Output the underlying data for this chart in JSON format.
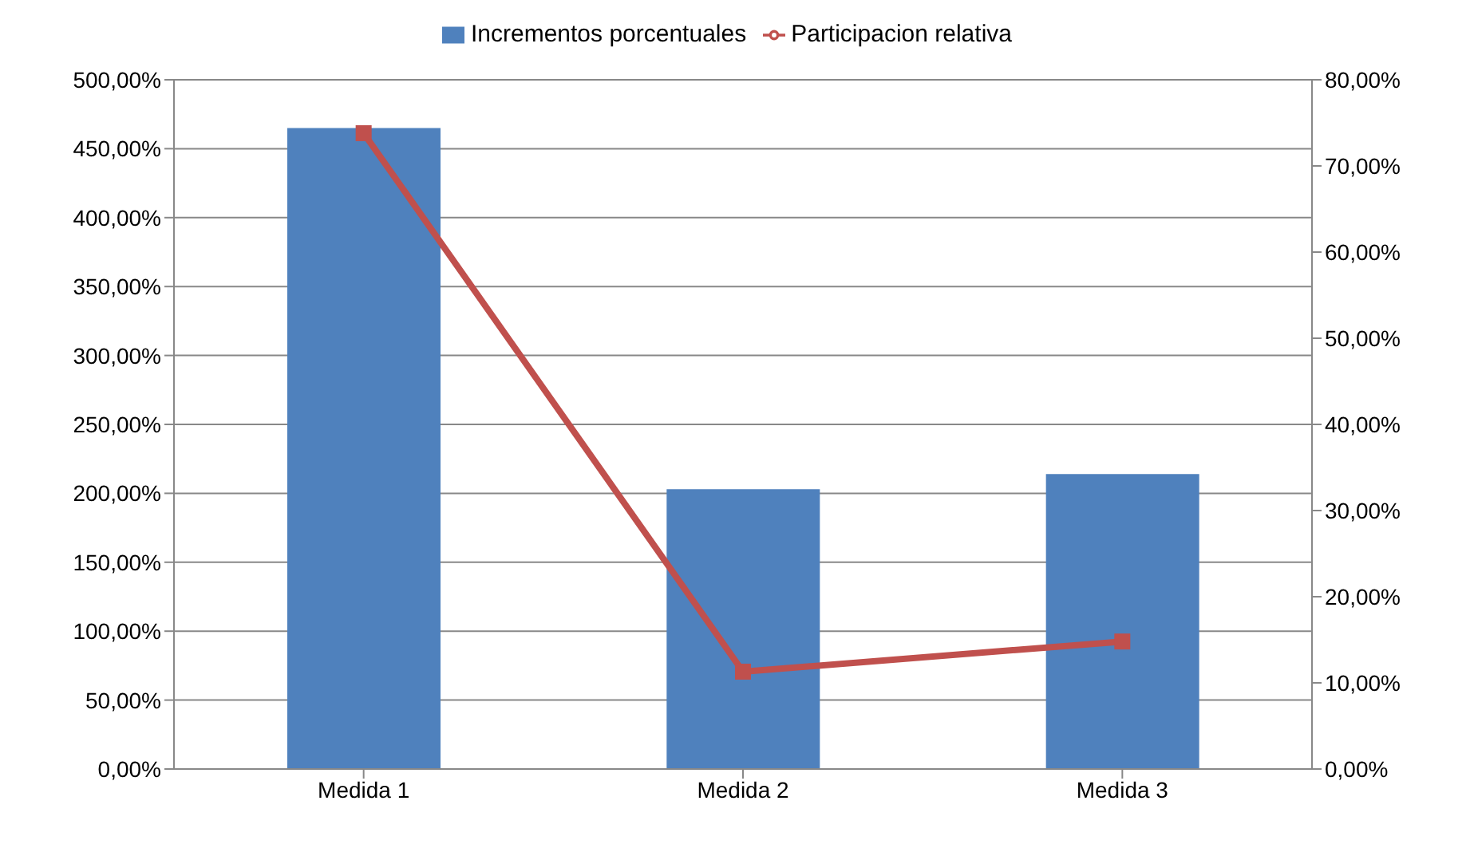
{
  "chart_data": {
    "type": "bar",
    "categories": [
      "Medida 1",
      "Medida 2",
      "Medida 3"
    ],
    "series": [
      {
        "name": "Incrementos porcentuales",
        "color": "#4f81bd",
        "values": [
          465,
          203,
          214
        ]
      },
      {
        "name": "Participacion relativa",
        "type": "line",
        "axis": "y2",
        "color": "#c0504d",
        "marker": "square",
        "values": [
          73.8,
          11.3,
          14.8
        ]
      }
    ],
    "ylim": [
      0,
      500
    ],
    "yticks": [
      {
        "value": 0,
        "label": "0,00%"
      },
      {
        "value": 50,
        "label": "50,00%"
      },
      {
        "value": 100,
        "label": "100,00%"
      },
      {
        "value": 150,
        "label": "150,00%"
      },
      {
        "value": 200,
        "label": "200,00%"
      },
      {
        "value": 250,
        "label": "250,00%"
      },
      {
        "value": 300,
        "label": "300,00%"
      },
      {
        "value": 350,
        "label": "350,00%"
      },
      {
        "value": 400,
        "label": "400,00%"
      },
      {
        "value": 450,
        "label": "450,00%"
      },
      {
        "value": 500,
        "label": "500,00%"
      }
    ],
    "y2lim": [
      0,
      80
    ],
    "y2ticks": [
      {
        "value": 0,
        "label": "0,00%"
      },
      {
        "value": 10,
        "label": "10,00%"
      },
      {
        "value": 20,
        "label": "20,00%"
      },
      {
        "value": 30,
        "label": "30,00%"
      },
      {
        "value": 40,
        "label": "40,00%"
      },
      {
        "value": 50,
        "label": "50,00%"
      },
      {
        "value": 60,
        "label": "60,00%"
      },
      {
        "value": 70,
        "label": "70,00%"
      },
      {
        "value": 80,
        "label": "80,00%"
      }
    ],
    "grid": "y",
    "legend": "top"
  }
}
